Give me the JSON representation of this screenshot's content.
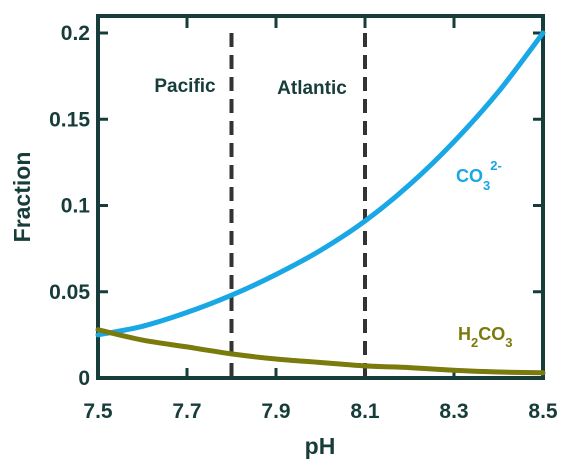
{
  "chart_data": {
    "type": "line",
    "title": "",
    "xlabel": "pH",
    "ylabel": "Fraction",
    "xlim": [
      7.5,
      8.5
    ],
    "ylim": [
      0,
      0.2
    ],
    "x_ticks": [
      7.5,
      7.7,
      7.9,
      8.1,
      8.3,
      8.5
    ],
    "x_tick_labels": [
      "7.5",
      "7.7",
      "7.9",
      "8.1",
      "8.3",
      "8.5"
    ],
    "y_ticks": [
      0,
      0.05,
      0.1,
      0.15,
      0.2
    ],
    "y_tick_labels": [
      "0",
      "0.05",
      "0.1",
      "0.15",
      "0.2"
    ],
    "grid": false,
    "x": [
      7.5,
      7.6,
      7.7,
      7.8,
      7.9,
      8.0,
      8.1,
      8.2,
      8.3,
      8.4,
      8.5
    ],
    "series": [
      {
        "id": "co3",
        "label_main": "CO",
        "label_sub": "3",
        "label_sup": "2-",
        "color": "#1aa7e6",
        "values": [
          0.025,
          0.03,
          0.038,
          0.048,
          0.06,
          0.074,
          0.091,
          0.112,
          0.137,
          0.166,
          0.2
        ]
      },
      {
        "id": "h2co3",
        "label_parts": [
          "H",
          "2",
          "CO",
          "3"
        ],
        "color": "#7b7a0c",
        "values": [
          0.028,
          0.022,
          0.018,
          0.014,
          0.011,
          0.009,
          0.007,
          0.006,
          0.0045,
          0.0035,
          0.003
        ]
      }
    ],
    "regions": [
      {
        "label": "Pacific",
        "x": 7.8
      },
      {
        "label": "Atlantic",
        "x": 8.1
      }
    ],
    "frame_color": "#173d3a",
    "divider_color": "#333333"
  }
}
